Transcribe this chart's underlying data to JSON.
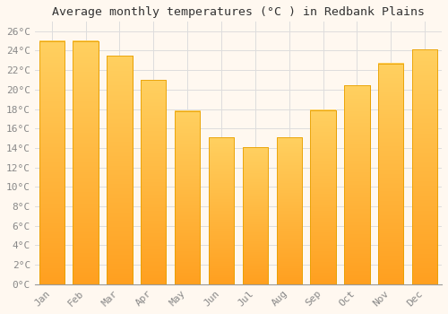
{
  "title": "Average monthly temperatures (°C ) in Redbank Plains",
  "months": [
    "Jan",
    "Feb",
    "Mar",
    "Apr",
    "May",
    "Jun",
    "Jul",
    "Aug",
    "Sep",
    "Oct",
    "Nov",
    "Dec"
  ],
  "values": [
    25.0,
    25.0,
    23.5,
    21.0,
    17.8,
    15.1,
    14.1,
    15.1,
    17.9,
    20.4,
    22.7,
    24.1
  ],
  "bar_color_top": "#FFD060",
  "bar_color_bottom": "#FFA020",
  "bar_edge_color": "#E8A000",
  "background_color": "#FFF8F0",
  "grid_color": "#dddddd",
  "ylim": [
    0,
    27
  ],
  "ytick_step": 2,
  "title_fontsize": 9.5,
  "tick_fontsize": 8,
  "tick_color": "#888888",
  "ylabel_suffix": "°C"
}
